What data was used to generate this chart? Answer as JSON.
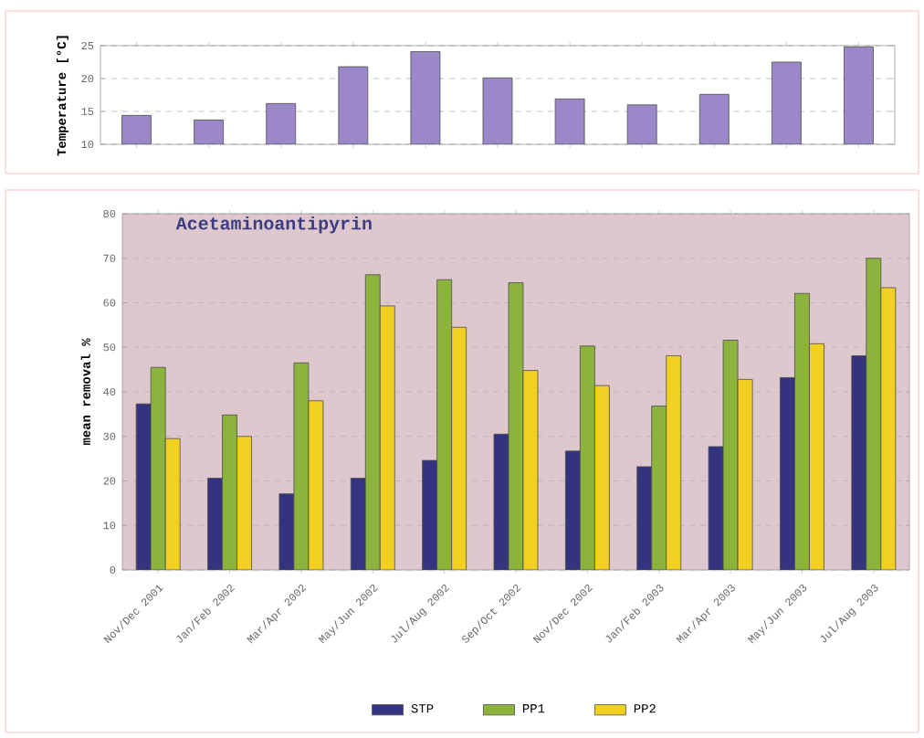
{
  "chart_data": [
    {
      "type": "bar",
      "ylabel": "Temperature [°C]",
      "categories": [
        null,
        null,
        null,
        null,
        null,
        null,
        null,
        null,
        null,
        null,
        null
      ],
      "values": [
        14.4,
        13.7,
        16.2,
        21.8,
        24.1,
        20.1,
        16.9,
        16.0,
        17.6,
        22.5,
        24.8
      ],
      "color": "#9a88c8",
      "ylim": [
        10,
        25
      ],
      "yticks": [
        10,
        15,
        20,
        25
      ],
      "grid": "y",
      "tick_labels": "y"
    },
    {
      "type": "bar",
      "title": "Acetaminoantipyrin",
      "ylabel": "mean removal %",
      "categories": [
        "Nov/Dec 2001",
        "Jan/Feb 2002",
        "Mar/Apr 2002",
        "May/Jun 2002",
        "Jul/Aug 2002",
        "Sep/Oct 2002",
        "Nov/Dec 2002",
        "Jan/Feb 2003",
        "Mar/Apr 2003",
        "May/Jun 2003",
        "Jul/Aug 2003"
      ],
      "series": [
        {
          "name": "STP",
          "color": "#33337f",
          "values": [
            37.3,
            20.6,
            17.1,
            20.6,
            24.6,
            30.5,
            26.7,
            23.2,
            27.7,
            43.2,
            48.1
          ]
        },
        {
          "name": "PP1",
          "color": "#8cb43c",
          "values": [
            45.5,
            34.8,
            46.5,
            66.3,
            65.2,
            64.5,
            50.3,
            36.8,
            51.6,
            62.1,
            70.0
          ]
        },
        {
          "name": "PP2",
          "color": "#f2d022",
          "values": [
            29.5,
            30.0,
            38.0,
            59.3,
            54.5,
            44.8,
            41.4,
            48.1,
            42.8,
            50.8,
            63.4
          ]
        }
      ],
      "ylim": [
        0,
        80
      ],
      "yticks": [
        0,
        10,
        20,
        30,
        40,
        50,
        60,
        70,
        80
      ],
      "grid": "y",
      "legend": "bottom"
    }
  ]
}
